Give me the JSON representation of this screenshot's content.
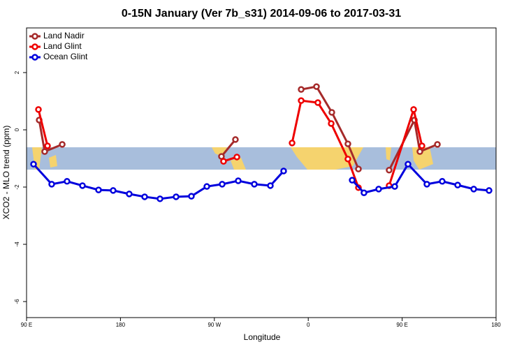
{
  "chart_data": {
    "type": "line",
    "title": "0-15N January (Ver 7b_s31)   2014-09-06 to 2017-03-31",
    "x_label": "Longitude",
    "y_label": "XCO2 - MLO trend (ppm)",
    "xlim": [
      90,
      540
    ],
    "ylim": [
      -6.56,
      3.56
    ],
    "xticks": [
      {
        "value": 90,
        "label": "90 E"
      },
      180,
      {
        "value": 270,
        "label": "90 W"
      },
      {
        "value": 360,
        "label": "0"
      },
      {
        "value": 450,
        "label": "90 E"
      },
      {
        "value": 540,
        "label": "180"
      }
    ],
    "yticks": [
      2,
      0,
      -2,
      -4,
      -6
    ],
    "legend": "top-left",
    "series": [
      {
        "name": "Land Nadir",
        "color": "#a52a2a",
        "x": [
          102.1,
          107.4,
          124.2,
          null,
          276.8,
          290.2,
          null,
          353.2,
          367.9,
          382.6,
          398.0,
          408.1,
          null,
          437.5,
          461.7,
          467.0,
          483.8
        ],
        "values": [
          0.34,
          -0.76,
          -0.51,
          null,
          -0.93,
          -0.34,
          null,
          1.41,
          1.51,
          0.61,
          -0.49,
          -1.37,
          null,
          -1.41,
          0.34,
          -0.76,
          -0.51
        ]
      },
      {
        "name": "Land Glint",
        "color": "#ee0000",
        "x": [
          101.4,
          110.1,
          null,
          278.8,
          291.6,
          null,
          344.5,
          353.2,
          369.2,
          382.0,
          398.0,
          408.1,
          null,
          437.5,
          461.0,
          469.0
        ],
        "values": [
          0.71,
          -0.56,
          null,
          -1.1,
          -0.95,
          null,
          -0.46,
          1.02,
          0.95,
          0.22,
          -1.02,
          -2.02,
          null,
          -1.95,
          0.71,
          -0.56
        ]
      },
      {
        "name": "Ocean Glint",
        "color": "#0000dd",
        "x": [
          96.7,
          114.1,
          128.8,
          143.6,
          159.0,
          173.0,
          188.4,
          203.2,
          217.9,
          233.3,
          248.0,
          262.8,
          277.5,
          292.9,
          308.3,
          323.7,
          336.4,
          null,
          402.1,
          413.4,
          427.5,
          442.9,
          455.6,
          473.7,
          488.4,
          503.2,
          518.6,
          533.3
        ],
        "values": [
          -1.2,
          -1.9,
          -1.8,
          -1.95,
          -2.1,
          -2.12,
          -2.24,
          -2.34,
          -2.41,
          -2.34,
          -2.32,
          -1.98,
          -1.9,
          -1.78,
          -1.9,
          -1.95,
          -1.44,
          null,
          -1.76,
          -2.2,
          -2.07,
          -1.98,
          -1.2,
          -1.9,
          -1.8,
          -1.93,
          -2.07,
          -2.12
        ]
      }
    ]
  }
}
